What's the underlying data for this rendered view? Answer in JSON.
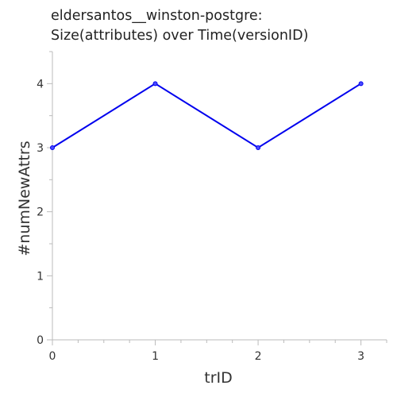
{
  "chart_data": {
    "type": "line",
    "title_lines": [
      "eldersantos__winston-postgre:",
      "Size(attributes) over Time(versionID)"
    ],
    "xlabel": "trID",
    "ylabel": "#numNewAttrs",
    "x_ticks": [
      0,
      1,
      2,
      3
    ],
    "y_ticks": [
      0,
      1,
      2,
      3,
      4
    ],
    "xlim": [
      0,
      3.25
    ],
    "ylim": [
      0,
      4.5
    ],
    "grid": false,
    "series": [
      {
        "x": [
          0,
          1,
          2,
          3
        ],
        "y": [
          3,
          4,
          3,
          4
        ],
        "color": "#0000ee"
      }
    ]
  }
}
